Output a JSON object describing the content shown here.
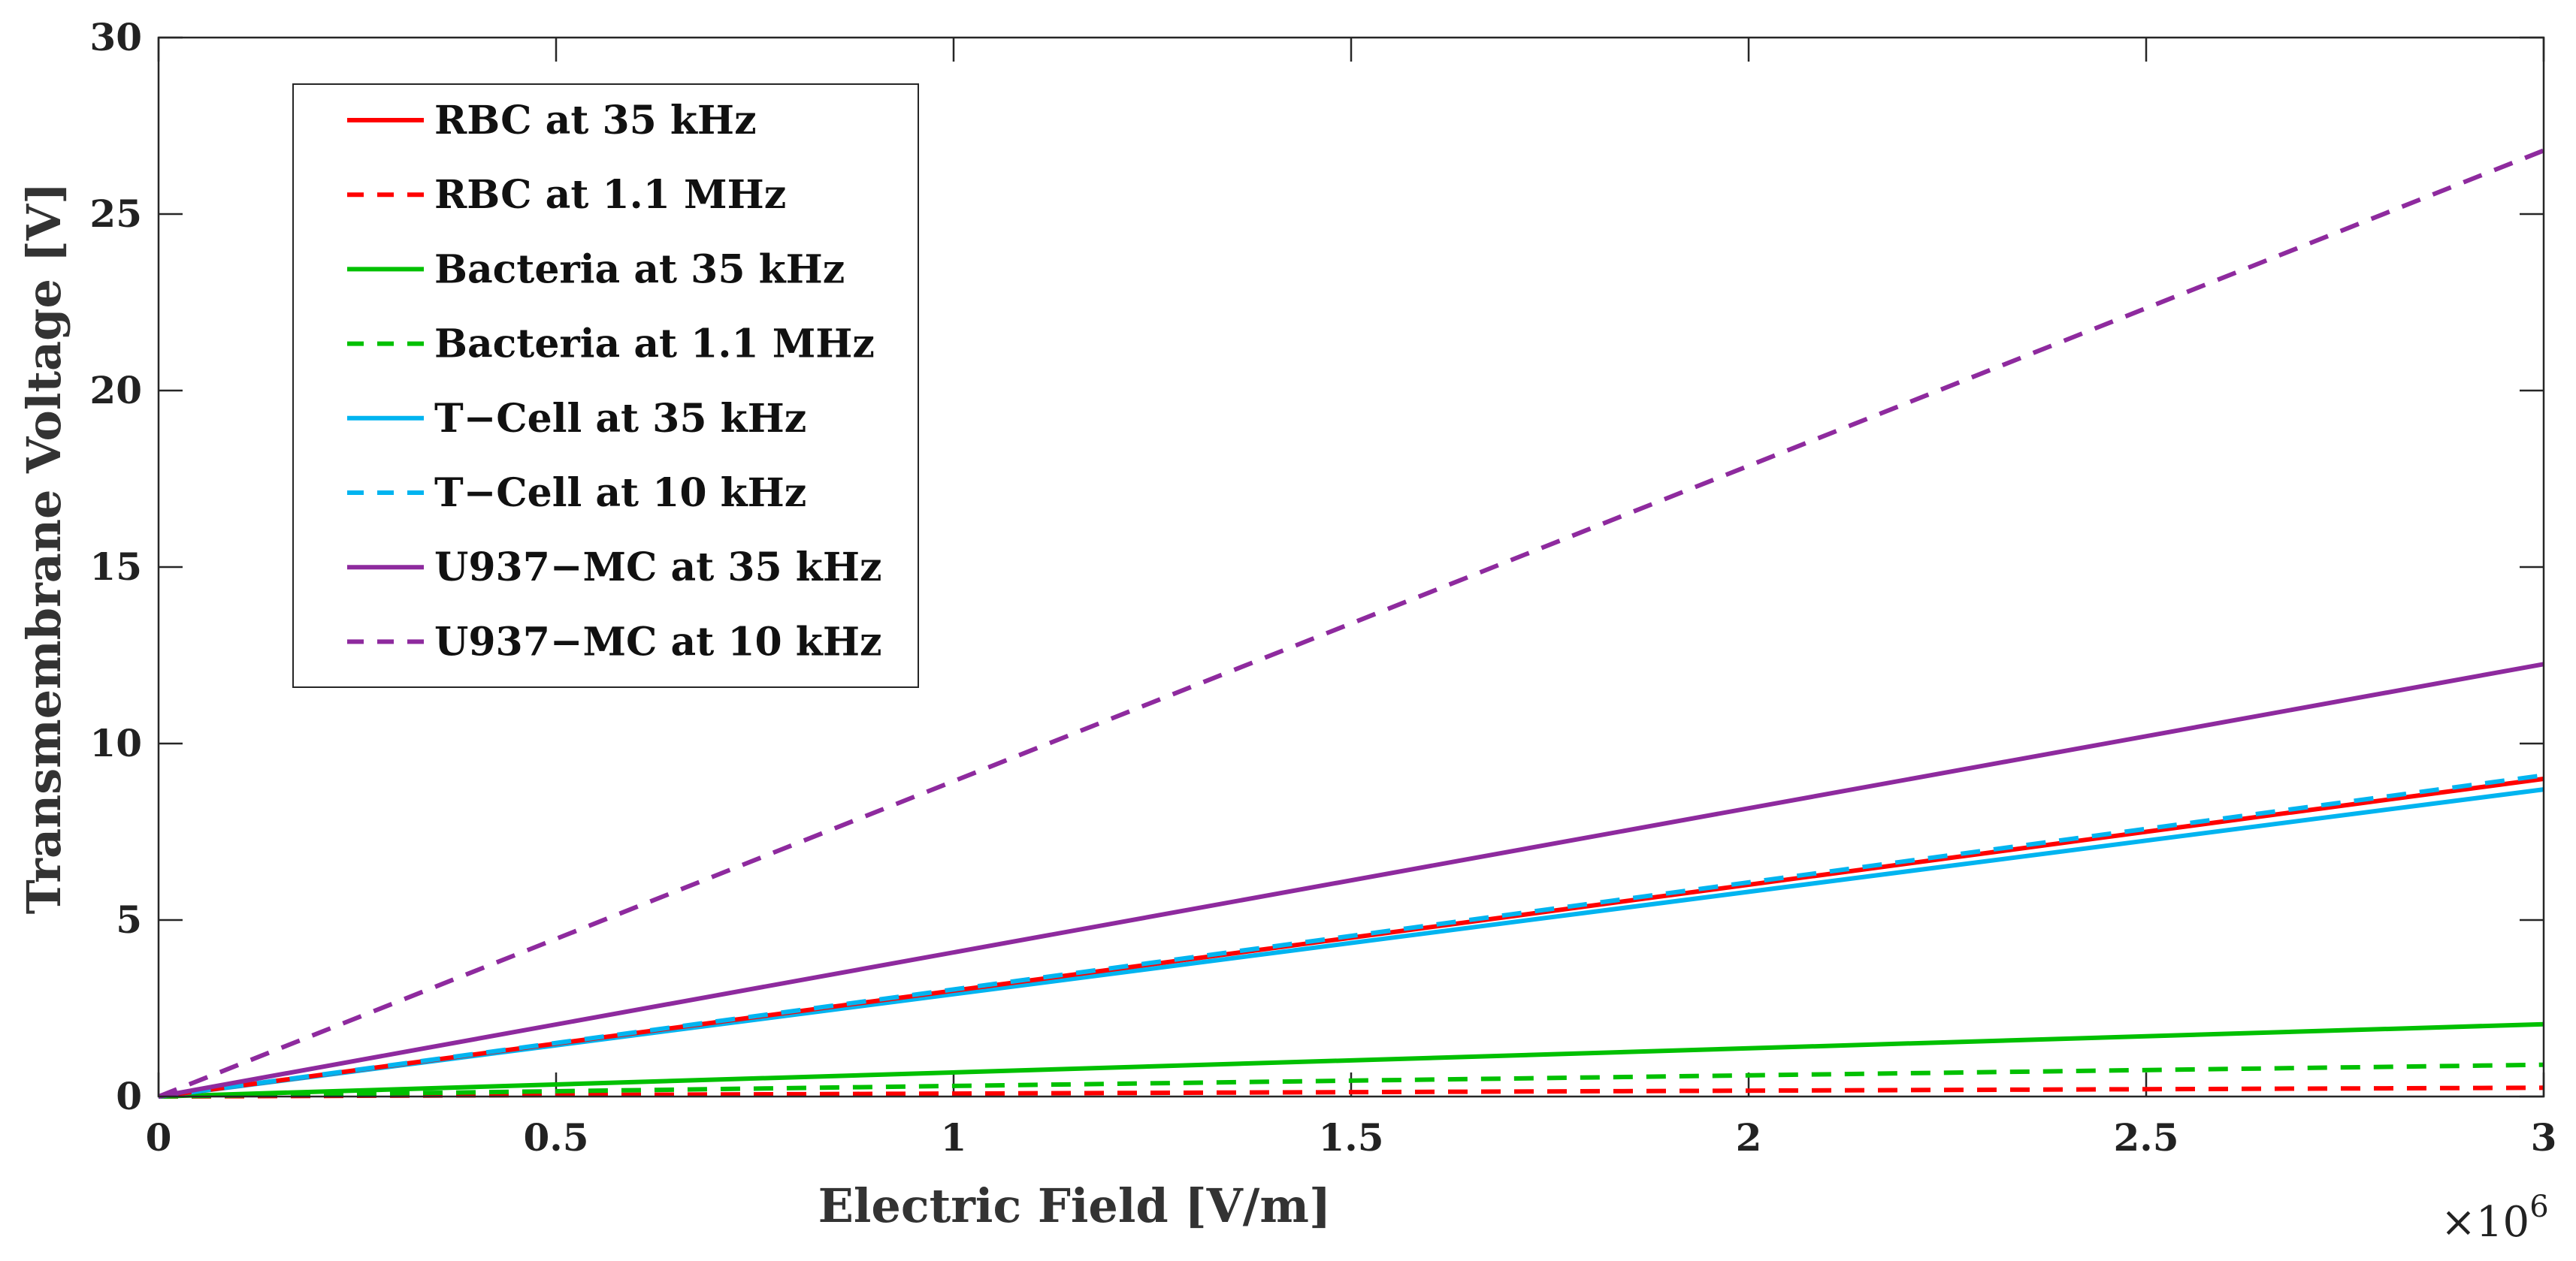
{
  "chart_data": {
    "type": "line",
    "title": "",
    "xlabel": "Electric Field [V/m]",
    "ylabel": "Transmembrane Voltage [V]",
    "x_multiplier_label": "×10",
    "x_multiplier_exponent": "6",
    "xlim": [
      0,
      3
    ],
    "ylim": [
      0,
      30
    ],
    "xticks": [
      0,
      0.5,
      1,
      1.5,
      2,
      2.5,
      3
    ],
    "xtick_labels": [
      "0",
      "0.5",
      "1",
      "1.5",
      "2",
      "2.5",
      "3"
    ],
    "yticks": [
      0,
      5,
      10,
      15,
      20,
      25,
      30
    ],
    "ytick_labels": [
      "0",
      "5",
      "10",
      "15",
      "20",
      "25",
      "30"
    ],
    "grid": false,
    "legend_position": "top-left",
    "series": [
      {
        "name": "RBC at 35 kHz",
        "color": "#ff0000",
        "dash": "solid",
        "x": [
          0,
          3
        ],
        "y": [
          0,
          9.0
        ]
      },
      {
        "name": "RBC at 1.1 MHz",
        "color": "#ff0000",
        "dash": "dashed",
        "x": [
          0,
          3
        ],
        "y": [
          0,
          0.25
        ]
      },
      {
        "name": "Bacteria at 35 kHz",
        "color": "#00c000",
        "dash": "solid",
        "x": [
          0,
          3
        ],
        "y": [
          0,
          2.05
        ]
      },
      {
        "name": "Bacteria at 1.1 MHz",
        "color": "#00c000",
        "dash": "dashed",
        "x": [
          0,
          3
        ],
        "y": [
          0,
          0.9
        ]
      },
      {
        "name": "T−Cell at 35 kHz",
        "color": "#00b4f0",
        "dash": "solid",
        "x": [
          0,
          3
        ],
        "y": [
          0,
          8.7
        ]
      },
      {
        "name": "T−Cell at 10 kHz",
        "color": "#00b4f0",
        "dash": "dashed",
        "x": [
          0,
          3
        ],
        "y": [
          0,
          9.1
        ]
      },
      {
        "name": "U937−MC at 35 kHz",
        "color": "#8e2a9e",
        "dash": "solid",
        "x": [
          0,
          3
        ],
        "y": [
          0,
          12.25
        ]
      },
      {
        "name": "U937−MC at 10 kHz",
        "color": "#8e2a9e",
        "dash": "dashed",
        "x": [
          0,
          3
        ],
        "y": [
          0,
          26.8
        ]
      }
    ]
  }
}
